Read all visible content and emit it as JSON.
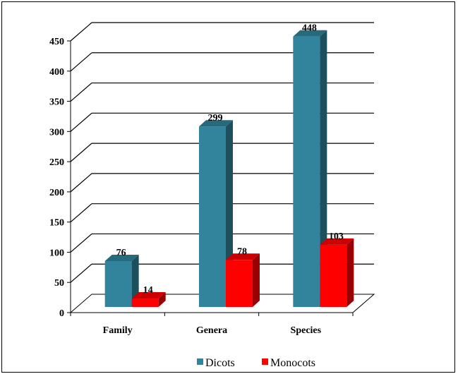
{
  "chart_data": {
    "type": "bar",
    "categories": [
      "Family",
      "Genera",
      "Species"
    ],
    "series": [
      {
        "name": "Dicots",
        "values": [
          76,
          299,
          448
        ],
        "color": "#31849b"
      },
      {
        "name": "Monocots",
        "values": [
          14,
          78,
          103
        ],
        "color": "#ff0000"
      }
    ],
    "ylim": [
      0,
      450
    ],
    "yticks": [
      "0",
      "50",
      "100",
      "150",
      "200",
      "250",
      "300",
      "350",
      "400",
      "450"
    ],
    "grid": true,
    "legend_position": "bottom",
    "style": "3d-column"
  }
}
